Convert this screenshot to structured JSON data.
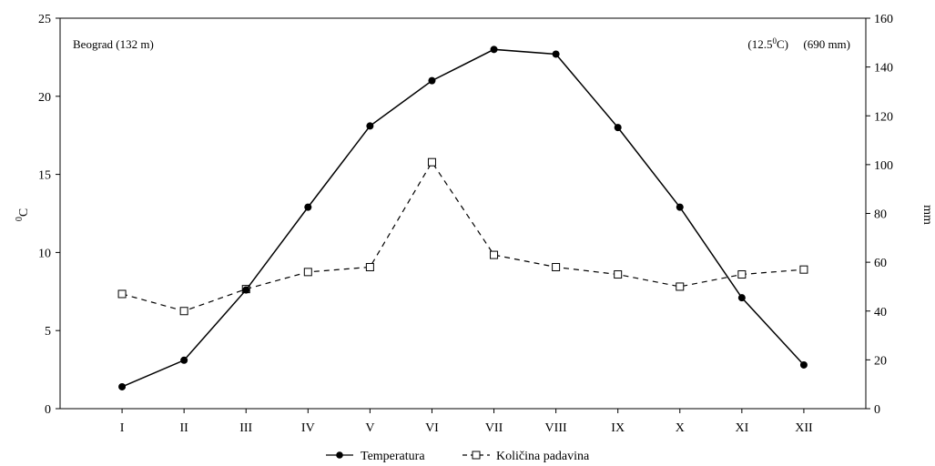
{
  "chart_data": {
    "type": "line",
    "categories": [
      "I",
      "II",
      "III",
      "IV",
      "V",
      "VI",
      "VII",
      "VIII",
      "IX",
      "X",
      "XI",
      "XII"
    ],
    "series": [
      {
        "name": "Temperatura",
        "axis": "left",
        "values": [
          1.4,
          3.1,
          7.6,
          12.9,
          18.1,
          21.0,
          23.0,
          22.7,
          18.0,
          12.9,
          7.1,
          2.8
        ],
        "color": "#000000",
        "marker": "filled-circle",
        "line_style": "solid"
      },
      {
        "name": "Količina padavina",
        "axis": "right",
        "values": [
          47,
          40,
          49,
          56,
          58,
          101,
          63,
          58,
          55,
          50,
          55,
          57
        ],
        "color": "#000000",
        "marker": "open-square",
        "line_style": "dashed"
      }
    ],
    "y_left": {
      "label": "0C",
      "label_base": "C",
      "label_sup": "0",
      "ylim": [
        0,
        25
      ],
      "ticks": [
        0,
        5,
        10,
        15,
        20,
        25
      ]
    },
    "y_right": {
      "label": "mm",
      "ylim": [
        0,
        160
      ],
      "ticks": [
        0,
        20,
        40,
        60,
        80,
        100,
        120,
        140,
        160
      ]
    },
    "annotations": {
      "station": "Beograd (132 m)",
      "mean_temp": "(12.5",
      "mean_temp_sup": "0",
      "mean_temp_unit": "C)",
      "precip_total": "(690 mm)"
    },
    "legend": {
      "placement": "bottom-center",
      "entries": [
        "Temperatura",
        "Količina padavina"
      ]
    },
    "grid": false
  }
}
